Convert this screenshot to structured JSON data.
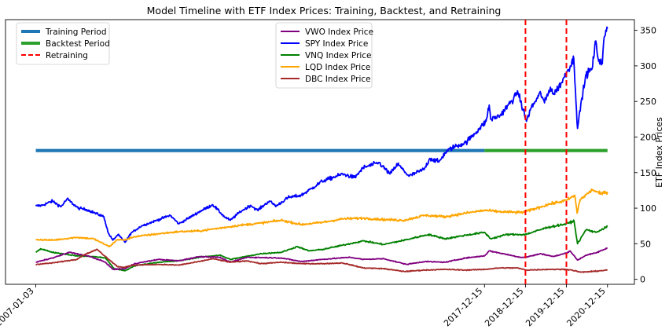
{
  "chart_data": {
    "type": "line",
    "title": "Model Timeline with ETF Index Prices: Training, Backtest, and Retraining",
    "xlabel": "",
    "ylabel": "ETF Index Prices",
    "xlim": [
      "2006-04-08",
      "2021-08-12"
    ],
    "ylim": [
      -7,
      365
    ],
    "x_ticks": [
      "2007-01-03",
      "2017-12-15",
      "2018-12-15",
      "2019-12-15",
      "2020-12-15"
    ],
    "y_ticks": [
      0,
      50,
      100,
      150,
      200,
      250,
      300,
      350
    ],
    "grid": false,
    "legends": [
      {
        "placement": "upper-left",
        "entries": [
          {
            "label": "Training Period",
            "color": "#1f77b4",
            "style": "solid-thick"
          },
          {
            "label": "Backtest Period",
            "color": "#2ca02c",
            "style": "solid-thick"
          },
          {
            "label": "Retraining",
            "color": "#ff0000",
            "style": "dashed"
          }
        ]
      },
      {
        "placement": "upper-center",
        "entries": [
          {
            "label": "VWO Index Price",
            "color": "#800080"
          },
          {
            "label": "SPY Index Price",
            "color": "#0000ff"
          },
          {
            "label": "VNQ Index Price",
            "color": "#008000"
          },
          {
            "label": "LQD Index Price",
            "color": "#ffa500"
          },
          {
            "label": "DBC Index Price",
            "color": "#a52a2a"
          }
        ]
      }
    ],
    "periods": [
      {
        "name": "Training Period",
        "start": "2007-01-03",
        "end": "2017-12-15",
        "level": 181,
        "color": "#1f77b4"
      },
      {
        "name": "Backtest Period",
        "start": "2017-12-15",
        "end": "2020-12-15",
        "level": 181,
        "color": "#2ca02c"
      }
    ],
    "retraining_dates": [
      "2018-12-15",
      "2019-12-15"
    ],
    "retraining_color": "#ff0000",
    "series": [
      {
        "name": "SPY Index Price",
        "color": "#0000ff",
        "points": [
          [
            "2007-01-03",
            103
          ],
          [
            "2007-03-01",
            104
          ],
          [
            "2007-06-01",
            110
          ],
          [
            "2007-08-15",
            102
          ],
          [
            "2007-10-10",
            113
          ],
          [
            "2008-01-15",
            100
          ],
          [
            "2008-04-01",
            98
          ],
          [
            "2008-06-15",
            93
          ],
          [
            "2008-09-01",
            88
          ],
          [
            "2008-10-10",
            65
          ],
          [
            "2008-11-20",
            55
          ],
          [
            "2009-01-05",
            63
          ],
          [
            "2009-03-09",
            52
          ],
          [
            "2009-05-01",
            65
          ],
          [
            "2009-08-01",
            75
          ],
          [
            "2009-12-01",
            82
          ],
          [
            "2010-04-15",
            90
          ],
          [
            "2010-07-01",
            78
          ],
          [
            "2010-12-31",
            95
          ],
          [
            "2011-04-29",
            105
          ],
          [
            "2011-08-10",
            88
          ],
          [
            "2011-10-03",
            83
          ],
          [
            "2011-12-30",
            95
          ],
          [
            "2012-04-01",
            104
          ],
          [
            "2012-06-01",
            97
          ],
          [
            "2012-09-14",
            110
          ],
          [
            "2012-11-15",
            103
          ],
          [
            "2013-03-01",
            115
          ],
          [
            "2013-06-25",
            118
          ],
          [
            "2013-09-30",
            128
          ],
          [
            "2013-12-31",
            138
          ],
          [
            "2014-06-30",
            148
          ],
          [
            "2014-10-15",
            143
          ],
          [
            "2014-12-31",
            157
          ],
          [
            "2015-05-20",
            164
          ],
          [
            "2015-08-25",
            148
          ],
          [
            "2015-11-03",
            162
          ],
          [
            "2016-02-11",
            145
          ],
          [
            "2016-06-27",
            155
          ],
          [
            "2016-08-15",
            170
          ],
          [
            "2016-11-04",
            165
          ],
          [
            "2016-12-30",
            178
          ],
          [
            "2017-03-01",
            185
          ],
          [
            "2017-06-30",
            192
          ],
          [
            "2017-10-31",
            212
          ],
          [
            "2017-12-29",
            222
          ],
          [
            "2018-01-26",
            245
          ],
          [
            "2018-02-08",
            225
          ],
          [
            "2018-05-01",
            230
          ],
          [
            "2018-09-20",
            258
          ],
          [
            "2018-10-05",
            265
          ],
          [
            "2018-12-24",
            222
          ],
          [
            "2019-01-31",
            240
          ],
          [
            "2019-04-30",
            262
          ],
          [
            "2019-06-03",
            248
          ],
          [
            "2019-07-26",
            270
          ],
          [
            "2019-08-23",
            260
          ],
          [
            "2019-10-31",
            276
          ],
          [
            "2019-12-31",
            295
          ],
          [
            "2020-02-19",
            310
          ],
          [
            "2020-03-23",
            212
          ],
          [
            "2020-05-01",
            255
          ],
          [
            "2020-06-08",
            288
          ],
          [
            "2020-07-31",
            296
          ],
          [
            "2020-09-02",
            335
          ],
          [
            "2020-09-23",
            310
          ],
          [
            "2020-10-30",
            303
          ],
          [
            "2020-11-15",
            340
          ],
          [
            "2020-12-15",
            352
          ]
        ]
      },
      {
        "name": "LQD Index Price",
        "color": "#ffa500",
        "points": [
          [
            "2007-01-03",
            56
          ],
          [
            "2007-06-01",
            55
          ],
          [
            "2008-01-01",
            59
          ],
          [
            "2008-06-01",
            57
          ],
          [
            "2008-10-20",
            46
          ],
          [
            "2008-12-31",
            56
          ],
          [
            "2009-03-01",
            55
          ],
          [
            "2009-06-01",
            60
          ],
          [
            "2009-12-31",
            64
          ],
          [
            "2010-06-30",
            67
          ],
          [
            "2010-12-31",
            68
          ],
          [
            "2011-06-30",
            72
          ],
          [
            "2011-12-31",
            76
          ],
          [
            "2012-06-30",
            79
          ],
          [
            "2012-12-31",
            83
          ],
          [
            "2013-06-24",
            77
          ],
          [
            "2013-12-31",
            80
          ],
          [
            "2014-06-30",
            85
          ],
          [
            "2014-12-31",
            86
          ],
          [
            "2015-06-30",
            84
          ],
          [
            "2015-12-31",
            83
          ],
          [
            "2016-06-30",
            90
          ],
          [
            "2016-12-31",
            88
          ],
          [
            "2017-06-30",
            93
          ],
          [
            "2017-12-15",
            97
          ],
          [
            "2018-05-01",
            95
          ],
          [
            "2018-10-31",
            94
          ],
          [
            "2018-12-15",
            95
          ],
          [
            "2019-06-30",
            105
          ],
          [
            "2019-12-15",
            111
          ],
          [
            "2020-02-28",
            118
          ],
          [
            "2020-03-19",
            93
          ],
          [
            "2020-04-15",
            112
          ],
          [
            "2020-08-04",
            126
          ],
          [
            "2020-10-15",
            120
          ],
          [
            "2020-12-15",
            123
          ]
        ]
      },
      {
        "name": "VNQ Index Price",
        "color": "#008000",
        "points": [
          [
            "2007-01-03",
            38
          ],
          [
            "2007-02-15",
            43
          ],
          [
            "2007-06-01",
            38
          ],
          [
            "2007-09-01",
            36
          ],
          [
            "2008-01-01",
            33
          ],
          [
            "2008-06-01",
            32
          ],
          [
            "2008-09-15",
            30
          ],
          [
            "2008-12-01",
            15
          ],
          [
            "2009-03-09",
            12
          ],
          [
            "2009-06-01",
            19
          ],
          [
            "2009-12-31",
            24
          ],
          [
            "2010-06-30",
            26
          ],
          [
            "2010-12-31",
            31
          ],
          [
            "2011-06-30",
            34
          ],
          [
            "2011-10-03",
            28
          ],
          [
            "2012-06-30",
            36
          ],
          [
            "2012-12-31",
            38
          ],
          [
            "2013-05-21",
            46
          ],
          [
            "2013-09-01",
            40
          ],
          [
            "2013-12-31",
            42
          ],
          [
            "2014-12-31",
            54
          ],
          [
            "2015-06-30",
            49
          ],
          [
            "2015-12-31",
            55
          ],
          [
            "2016-08-01",
            63
          ],
          [
            "2016-12-31",
            57
          ],
          [
            "2017-06-30",
            62
          ],
          [
            "2017-12-15",
            66
          ],
          [
            "2018-02-09",
            57
          ],
          [
            "2018-06-30",
            63
          ],
          [
            "2018-12-15",
            63
          ],
          [
            "2019-06-30",
            73
          ],
          [
            "2019-12-15",
            78
          ],
          [
            "2020-02-21",
            82
          ],
          [
            "2020-03-23",
            50
          ],
          [
            "2020-06-08",
            70
          ],
          [
            "2020-09-01",
            66
          ],
          [
            "2020-12-15",
            74
          ]
        ]
      },
      {
        "name": "VWO Index Price",
        "color": "#800080",
        "points": [
          [
            "2007-01-03",
            24
          ],
          [
            "2007-06-01",
            30
          ],
          [
            "2007-10-31",
            38
          ],
          [
            "2008-05-01",
            32
          ],
          [
            "2008-09-15",
            24
          ],
          [
            "2008-11-20",
            14
          ],
          [
            "2009-03-09",
            15
          ],
          [
            "2009-06-01",
            22
          ],
          [
            "2009-12-31",
            28
          ],
          [
            "2010-06-30",
            26
          ],
          [
            "2010-12-31",
            32
          ],
          [
            "2011-06-30",
            31
          ],
          [
            "2011-10-03",
            24
          ],
          [
            "2012-03-01",
            31
          ],
          [
            "2012-12-31",
            30
          ],
          [
            "2013-06-24",
            25
          ],
          [
            "2013-12-31",
            28
          ],
          [
            "2014-09-01",
            31
          ],
          [
            "2014-12-31",
            28
          ],
          [
            "2015-06-30",
            29
          ],
          [
            "2016-01-20",
            21
          ],
          [
            "2016-06-30",
            25
          ],
          [
            "2016-12-31",
            24
          ],
          [
            "2017-06-30",
            30
          ],
          [
            "2017-12-15",
            33
          ],
          [
            "2018-01-26",
            40
          ],
          [
            "2018-06-30",
            35
          ],
          [
            "2018-10-29",
            31
          ],
          [
            "2018-12-15",
            31
          ],
          [
            "2019-04-30",
            36
          ],
          [
            "2019-08-23",
            32
          ],
          [
            "2019-12-15",
            37
          ],
          [
            "2020-01-17",
            40
          ],
          [
            "2020-03-23",
            27
          ],
          [
            "2020-06-08",
            34
          ],
          [
            "2020-09-01",
            37
          ],
          [
            "2020-12-15",
            44
          ]
        ]
      },
      {
        "name": "DBC Index Price",
        "color": "#a52a2a",
        "points": [
          [
            "2007-01-03",
            21
          ],
          [
            "2007-06-01",
            23
          ],
          [
            "2007-12-31",
            28
          ],
          [
            "2008-03-15",
            35
          ],
          [
            "2008-07-03",
            42
          ],
          [
            "2008-09-15",
            32
          ],
          [
            "2008-12-31",
            18
          ],
          [
            "2009-03-01",
            17
          ],
          [
            "2009-06-01",
            20
          ],
          [
            "2009-12-31",
            21
          ],
          [
            "2010-06-30",
            20
          ],
          [
            "2010-12-31",
            25
          ],
          [
            "2011-04-29",
            29
          ],
          [
            "2011-10-03",
            24
          ],
          [
            "2012-03-01",
            26
          ],
          [
            "2012-06-30",
            22
          ],
          [
            "2012-12-31",
            24
          ],
          [
            "2013-06-30",
            22
          ],
          [
            "2013-12-31",
            22
          ],
          [
            "2014-06-30",
            23
          ],
          [
            "2014-12-31",
            16
          ],
          [
            "2015-06-30",
            15
          ],
          [
            "2015-12-31",
            11
          ],
          [
            "2016-06-30",
            13
          ],
          [
            "2016-12-31",
            14
          ],
          [
            "2017-06-30",
            13
          ],
          [
            "2017-12-15",
            14
          ],
          [
            "2018-05-01",
            16
          ],
          [
            "2018-10-03",
            16
          ],
          [
            "2018-12-24",
            13
          ],
          [
            "2019-06-30",
            14
          ],
          [
            "2019-12-15",
            14
          ],
          [
            "2020-02-01",
            13
          ],
          [
            "2020-04-21",
            10
          ],
          [
            "2020-08-01",
            11
          ],
          [
            "2020-12-15",
            13
          ]
        ]
      }
    ]
  }
}
